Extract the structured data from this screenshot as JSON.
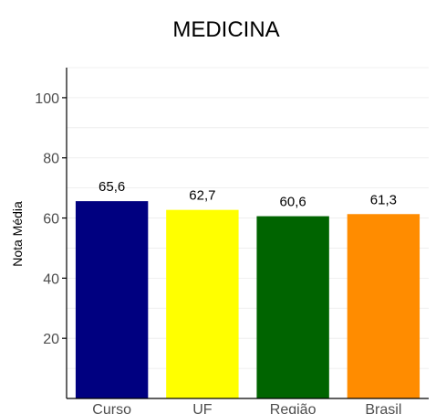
{
  "chart_data": {
    "type": "bar",
    "title": "MEDICINA",
    "xlabel": "",
    "ylabel": "Nota Média",
    "categories": [
      "Curso",
      "UF",
      "Região",
      "Brasil"
    ],
    "values": [
      65.6,
      62.7,
      60.6,
      61.3
    ],
    "value_labels": [
      "65,6",
      "62,7",
      "60,6",
      "61,3"
    ],
    "colors": [
      "#000080",
      "#ffff00",
      "#006400",
      "#ff8c00"
    ],
    "ylim": [
      0,
      110
    ],
    "yticks": [
      20,
      40,
      60,
      80,
      100
    ],
    "grid": true,
    "legend": "none"
  }
}
